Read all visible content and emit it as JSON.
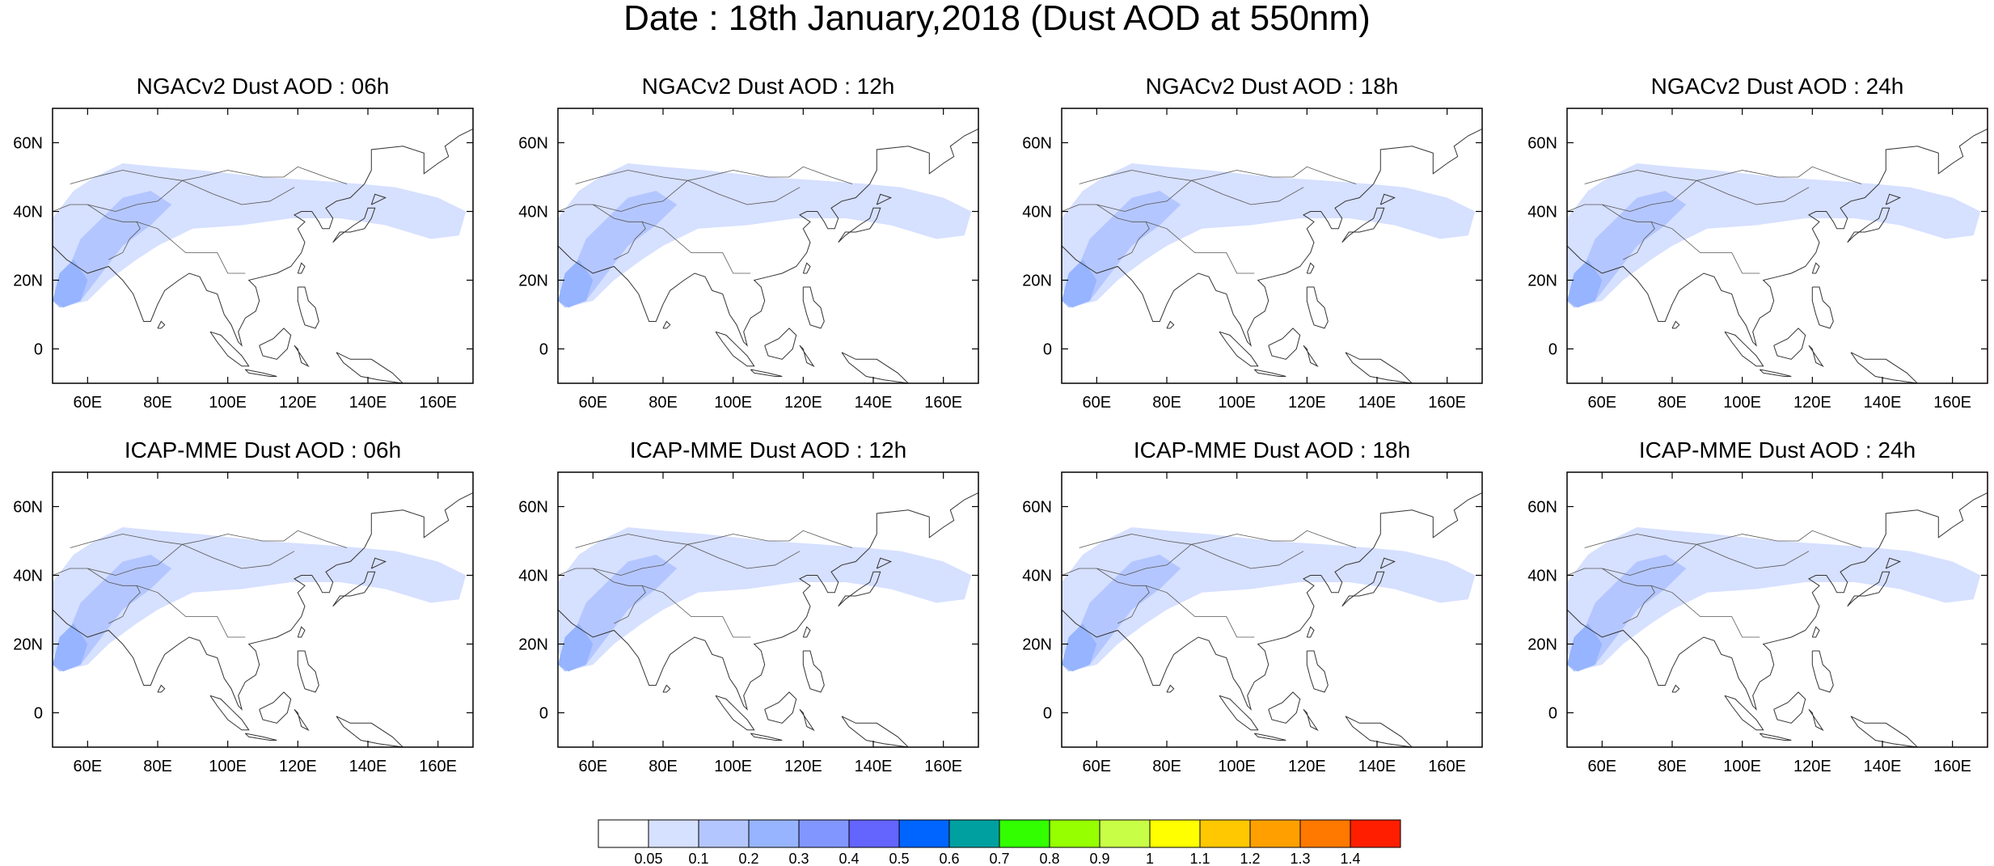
{
  "title": "Date : 18th January,2018 (Dust AOD at 550nm)",
  "map_axes": {
    "lon_ticks": [
      60,
      80,
      100,
      120,
      140,
      160
    ],
    "lon_tick_labels": [
      "60E",
      "80E",
      "100E",
      "120E",
      "140E",
      "160E"
    ],
    "lat_ticks": [
      0,
      20,
      40,
      60
    ],
    "lat_tick_labels": [
      "0",
      "20N",
      "40N",
      "60N"
    ],
    "lon_range": [
      50,
      170
    ],
    "lat_range": [
      -10,
      70
    ]
  },
  "panels": [
    {
      "title": "NGACv2 Dust AOD : 06h",
      "model": "NGACv2",
      "hour": "06h"
    },
    {
      "title": "NGACv2 Dust AOD : 12h",
      "model": "NGACv2",
      "hour": "12h"
    },
    {
      "title": "NGACv2 Dust AOD : 18h",
      "model": "NGACv2",
      "hour": "18h"
    },
    {
      "title": "NGACv2 Dust AOD : 24h",
      "model": "NGACv2",
      "hour": "24h"
    },
    {
      "title": "ICAP-MME Dust AOD : 06h",
      "model": "ICAP-MME",
      "hour": "06h"
    },
    {
      "title": "ICAP-MME Dust AOD : 12h",
      "model": "ICAP-MME",
      "hour": "12h"
    },
    {
      "title": "ICAP-MME Dust AOD : 18h",
      "model": "ICAP-MME",
      "hour": "18h"
    },
    {
      "title": "ICAP-MME Dust AOD : 24h",
      "model": "ICAP-MME",
      "hour": "24h"
    }
  ],
  "colorbar": {
    "labels": [
      "0.05",
      "0.1",
      "0.2",
      "0.3",
      "0.4",
      "0.5",
      "0.6",
      "0.7",
      "0.8",
      "0.9",
      "1",
      "1.1",
      "1.2",
      "1.3",
      "1.4"
    ],
    "colors": [
      "#ffffff",
      "#d6e0ff",
      "#b4c6ff",
      "#96b4ff",
      "#8296ff",
      "#6464ff",
      "#0064ff",
      "#00a0a0",
      "#32ff00",
      "#96ff00",
      "#c8ff46",
      "#ffff00",
      "#ffc800",
      "#ffa000",
      "#ff7800",
      "#ff1e00"
    ]
  }
}
